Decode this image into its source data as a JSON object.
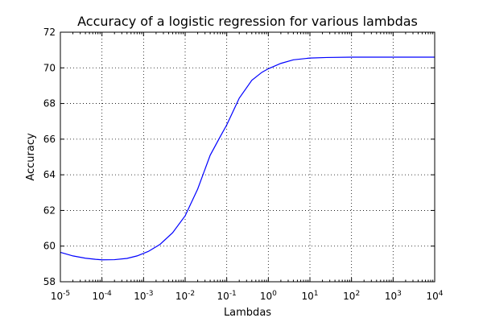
{
  "chart_data": {
    "type": "line",
    "title": "Accuracy of a logistic regression for various lambdas",
    "xlabel": "Lambdas",
    "ylabel": "Accuracy",
    "xscale": "log",
    "xlim": [
      1e-05,
      10000
    ],
    "ylim": [
      58,
      72
    ],
    "grid": true,
    "x_ticks": [
      {
        "value": 1e-05,
        "base": "10",
        "exp": "-5"
      },
      {
        "value": 0.0001,
        "base": "10",
        "exp": "-4"
      },
      {
        "value": 0.001,
        "base": "10",
        "exp": "-3"
      },
      {
        "value": 0.01,
        "base": "10",
        "exp": "-2"
      },
      {
        "value": 0.1,
        "base": "10",
        "exp": "-1"
      },
      {
        "value": 1,
        "base": "10",
        "exp": "0"
      },
      {
        "value": 10,
        "base": "10",
        "exp": "1"
      },
      {
        "value": 100,
        "base": "10",
        "exp": "2"
      },
      {
        "value": 1000,
        "base": "10",
        "exp": "3"
      },
      {
        "value": 10000,
        "base": "10",
        "exp": "4"
      }
    ],
    "y_ticks": [
      58,
      60,
      62,
      64,
      66,
      68,
      70,
      72
    ],
    "series": [
      {
        "color": "#0000ff",
        "x": [
          1e-05,
          2e-05,
          4e-05,
          7e-05,
          0.0001,
          0.0002,
          0.0004,
          0.0007,
          0.0013,
          0.0025,
          0.005,
          0.01,
          0.02,
          0.04,
          0.07,
          0.1,
          0.2,
          0.4,
          0.7,
          1,
          2,
          4,
          10,
          25,
          100,
          1000,
          10000
        ],
        "y": [
          59.65,
          59.45,
          59.32,
          59.26,
          59.23,
          59.24,
          59.31,
          59.45,
          59.7,
          60.1,
          60.75,
          61.7,
          63.2,
          65.1,
          66.15,
          66.8,
          68.3,
          69.3,
          69.75,
          69.95,
          70.25,
          70.45,
          70.55,
          70.58,
          70.6,
          70.6,
          70.6
        ]
      }
    ]
  }
}
